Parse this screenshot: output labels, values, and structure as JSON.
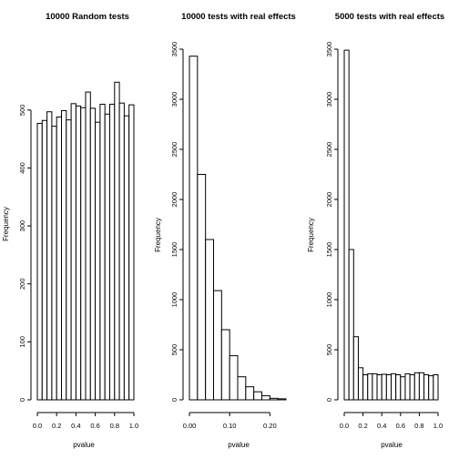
{
  "chart_data": [
    {
      "type": "bar",
      "title": "10000 Random tests",
      "xlabel": "pvalue",
      "ylabel": "Frequency",
      "bin_edges": [
        0,
        0.05,
        0.1,
        0.15,
        0.2,
        0.25,
        0.3,
        0.35,
        0.4,
        0.45,
        0.5,
        0.55,
        0.6,
        0.65,
        0.7,
        0.75,
        0.8,
        0.85,
        0.9,
        0.95,
        1.0
      ],
      "values": [
        477,
        482,
        497,
        472,
        488,
        499,
        483,
        511,
        507,
        504,
        531,
        503,
        479,
        510,
        493,
        510,
        548,
        512,
        490,
        509
      ],
      "xlim": [
        0,
        1.0
      ],
      "ylim": [
        0,
        550
      ],
      "xticks": [
        0,
        0.2,
        0.4,
        0.6,
        0.8,
        1.0
      ],
      "xtick_labels": [
        "0.0",
        "0.2",
        "0.4",
        "0.6",
        "0.8",
        "1.0"
      ],
      "yticks": [
        0,
        100,
        200,
        300,
        400,
        500
      ],
      "ytick_labels": [
        "0",
        "100",
        "200",
        "300",
        "400",
        "500"
      ]
    },
    {
      "type": "bar",
      "title": "10000 tests with real effects",
      "xlabel": "pvalue",
      "ylabel": "Frequency",
      "bin_edges": [
        0,
        0.02,
        0.04,
        0.06,
        0.08,
        0.1,
        0.12,
        0.14,
        0.16,
        0.18,
        0.2,
        0.22,
        0.24
      ],
      "values": [
        3430,
        2250,
        1600,
        1090,
        700,
        440,
        230,
        130,
        80,
        40,
        15,
        10
      ],
      "xlim": [
        0,
        0.24
      ],
      "ylim": [
        0,
        3500
      ],
      "xticks": [
        0,
        0.1,
        0.2
      ],
      "xtick_labels": [
        "0.00",
        "0.10",
        "0.20"
      ],
      "yticks": [
        0,
        500,
        1000,
        1500,
        2000,
        2500,
        3000,
        3500
      ],
      "ytick_labels": [
        "0",
        "500",
        "1000",
        "1500",
        "2000",
        "2500",
        "3000",
        "3500"
      ]
    },
    {
      "type": "bar",
      "title": "5000 tests with real effects",
      "xlabel": "pvalue",
      "ylabel": "Frequency",
      "bin_edges": [
        0,
        0.05,
        0.1,
        0.15,
        0.2,
        0.25,
        0.3,
        0.35,
        0.4,
        0.45,
        0.5,
        0.55,
        0.6,
        0.65,
        0.7,
        0.75,
        0.8,
        0.85,
        0.9,
        0.95,
        1.0
      ],
      "values": [
        3490,
        1500,
        630,
        320,
        250,
        260,
        260,
        250,
        255,
        250,
        260,
        250,
        230,
        260,
        250,
        270,
        270,
        250,
        240,
        250
      ],
      "xlim": [
        0,
        1.0
      ],
      "ylim": [
        0,
        3500
      ],
      "xticks": [
        0,
        0.2,
        0.4,
        0.6,
        0.8,
        1.0
      ],
      "xtick_labels": [
        "0.0",
        "0.2",
        "0.4",
        "0.6",
        "0.8",
        "1.0"
      ],
      "yticks": [
        0,
        500,
        1000,
        1500,
        2000,
        2500,
        3000,
        3500
      ],
      "ytick_labels": [
        "0",
        "500",
        "1000",
        "1500",
        "2000",
        "2500",
        "3000",
        "3500"
      ]
    }
  ]
}
